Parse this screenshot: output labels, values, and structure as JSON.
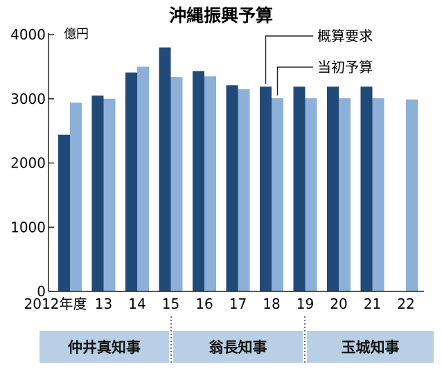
{
  "chart_data": {
    "type": "bar",
    "title": "沖縄振興予算",
    "unit_label": "億円",
    "categories": [
      "2012年度",
      "13",
      "14",
      "15",
      "16",
      "17",
      "18",
      "19",
      "20",
      "21",
      "22"
    ],
    "series": [
      {
        "name": "概算要求",
        "color": "#214a78",
        "values": [
          2440,
          3050,
          3410,
          3800,
          3430,
          3210,
          3190,
          3190,
          3190,
          3190,
          null
        ]
      },
      {
        "name": "当初予算",
        "color": "#8cb0d8",
        "values": [
          2940,
          3000,
          3500,
          3340,
          3350,
          3150,
          3010,
          3010,
          3010,
          3010,
          2990
        ]
      }
    ],
    "yticks": [
      0,
      1000,
      2000,
      3000,
      4000
    ],
    "ylim": [
      0,
      4000
    ],
    "grid": false,
    "legend_position": "top-right",
    "governors": [
      {
        "label": "仲井真知事",
        "from": "2012年度",
        "to": "14"
      },
      {
        "label": "翁長知事",
        "from": "15",
        "to": "18"
      },
      {
        "label": "玉城知事",
        "from": "19",
        "to": "22"
      }
    ]
  }
}
